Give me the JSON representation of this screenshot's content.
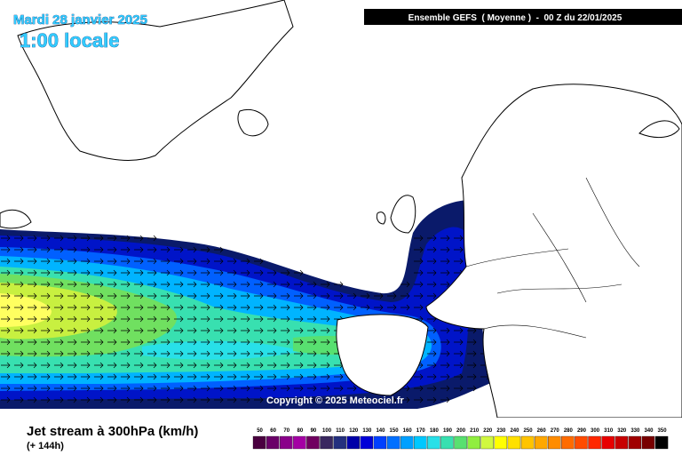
{
  "header": {
    "date": "Mardi 28 janvier 2025",
    "time": "1:00 locale",
    "model": "Ensemble GEFS  ( Moyenne )  -  00 Z du 22/01/2025"
  },
  "copyright": "Copyright © 2025 Meteociel.fr",
  "footer": {
    "title": "Jet stream à 300hPa (km/h)",
    "lead": "(+ 144h)"
  },
  "scale": {
    "values": [
      50,
      60,
      70,
      80,
      90,
      100,
      110,
      120,
      130,
      140,
      150,
      160,
      170,
      180,
      190,
      200,
      210,
      220,
      230,
      240,
      250,
      260,
      270,
      280,
      290,
      300,
      310,
      320,
      330,
      340,
      350
    ],
    "colors": [
      "#4a0040",
      "#6a0068",
      "#8a008a",
      "#a400a4",
      "#700060",
      "#3a2860",
      "#24307e",
      "#0000a8",
      "#0000d8",
      "#0040ff",
      "#0070ff",
      "#00a0ff",
      "#00c8ff",
      "#28e0e8",
      "#38e0b0",
      "#58e070",
      "#90ee40",
      "#d0f840",
      "#ffff00",
      "#ffe000",
      "#ffc400",
      "#ffa800",
      "#ff8c00",
      "#ff6c00",
      "#ff4c00",
      "#ff2800",
      "#e80000",
      "#c80000",
      "#a00000",
      "#780000",
      "#000000"
    ]
  }
}
